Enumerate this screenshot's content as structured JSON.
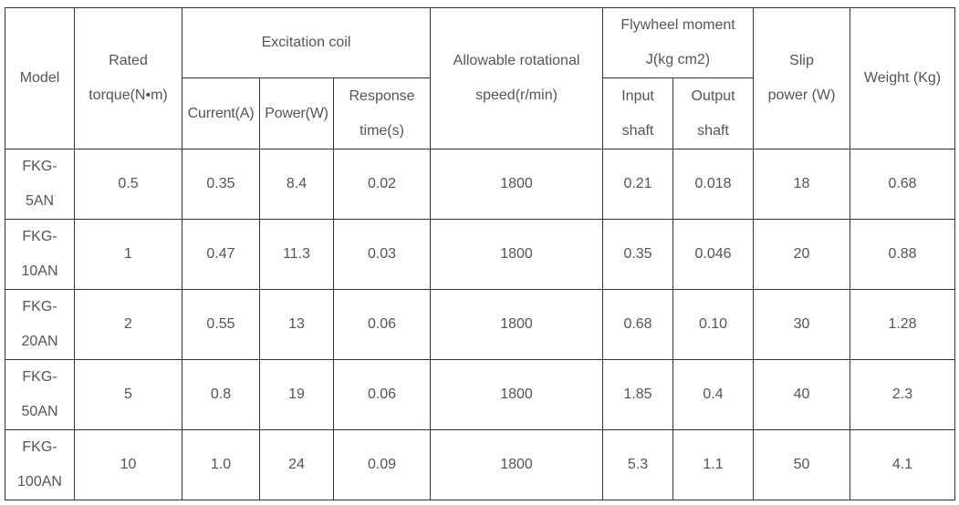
{
  "header": {
    "model": "Model",
    "rated_torque": [
      "Rated",
      "torque(N•m)"
    ],
    "excitation_coil": "Excitation coil",
    "current": "Current(A)",
    "power": "Power(W)",
    "response_time": [
      "Response",
      "time(s)"
    ],
    "allowable_speed": [
      "Allowable rotational",
      "speed(r/min)"
    ],
    "flywheel_moment": [
      "Flywheel moment",
      "J(kg cm2)"
    ],
    "input_shaft": [
      "Input",
      "shaft"
    ],
    "output_shaft": [
      "Output",
      "shaft"
    ],
    "slip_power": [
      "Slip",
      "power (W)"
    ],
    "weight": "Weight (Kg)"
  },
  "rows": [
    {
      "model": [
        "FKG-",
        "5AN"
      ],
      "torque": "0.5",
      "current": "0.35",
      "power": "8.4",
      "response": "0.02",
      "speed": "1800",
      "input": "0.21",
      "output": "0.018",
      "slip": "18",
      "weight": "0.68"
    },
    {
      "model": [
        "FKG-",
        "10AN"
      ],
      "torque": "1",
      "current": "0.47",
      "power": "11.3",
      "response": "0.03",
      "speed": "1800",
      "input": "0.35",
      "output": "0.046",
      "slip": "20",
      "weight": "0.88"
    },
    {
      "model": [
        "FKG-",
        "20AN"
      ],
      "torque": "2",
      "current": "0.55",
      "power": "13",
      "response": "0.06",
      "speed": "1800",
      "input": "0.68",
      "output": "0.10",
      "slip": "30",
      "weight": "1.28"
    },
    {
      "model": [
        "FKG-",
        "50AN"
      ],
      "torque": "5",
      "current": "0.8",
      "power": "19",
      "response": "0.06",
      "speed": "1800",
      "input": "1.85",
      "output": "0.4",
      "slip": "40",
      "weight": "2.3"
    },
    {
      "model": [
        "FKG-",
        "100AN"
      ],
      "torque": "10",
      "current": "1.0",
      "power": "24",
      "response": "0.09",
      "speed": "1800",
      "input": "5.3",
      "output": "1.1",
      "slip": "50",
      "weight": "4.1"
    }
  ]
}
